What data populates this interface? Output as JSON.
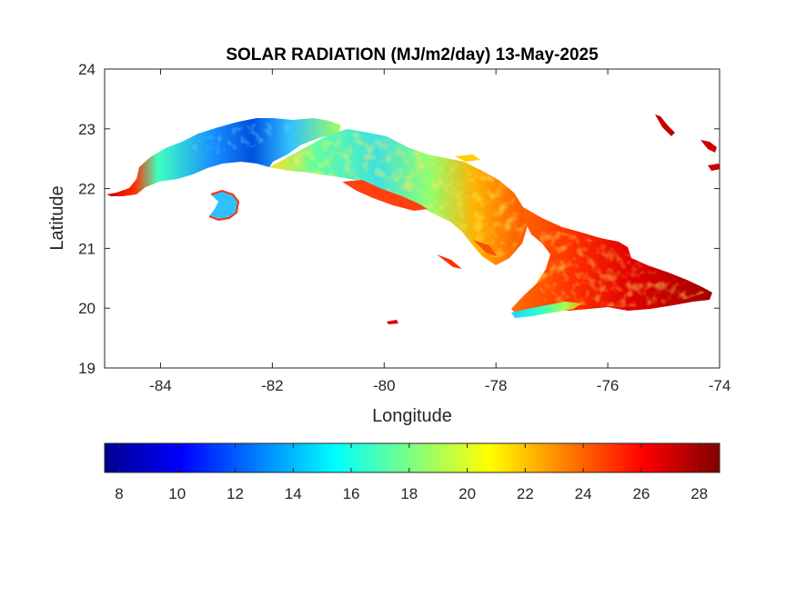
{
  "figure": {
    "title": "SOLAR RADIATION (MJ/m2/day) 13-May-2025"
  },
  "map": {
    "xlabel": "Longitude",
    "ylabel": "Latitude",
    "xlim": [
      -85,
      -74
    ],
    "ylim": [
      19,
      24
    ],
    "x_ticks": [
      "-84",
      "-82",
      "-80",
      "-78",
      "-76",
      "-74"
    ],
    "y_ticks": [
      "19",
      "20",
      "21",
      "22",
      "23",
      "24"
    ],
    "box": true,
    "grid": false
  },
  "colorbar": {
    "location": "southoutside",
    "limits": [
      7.5,
      28.7
    ],
    "colormap": "jet",
    "ticks": [
      "8",
      "10",
      "12",
      "14",
      "16",
      "18",
      "20",
      "22",
      "24",
      "26",
      "28"
    ],
    "colors": {
      "dark_blue": "#00008f",
      "blue": "#0000ff",
      "cyan": "#00ffff",
      "yellow": "#ffff00",
      "red": "#ff0000",
      "dark_red": "#800000"
    }
  }
}
